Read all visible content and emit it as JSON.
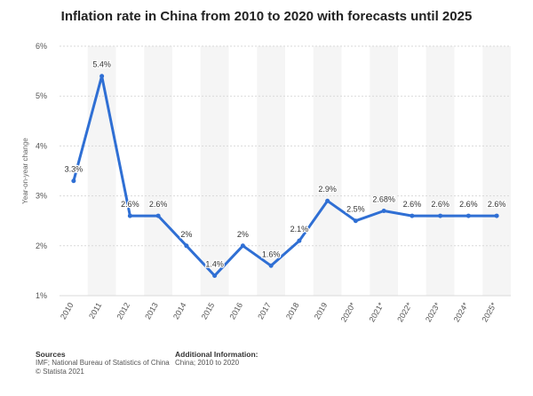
{
  "chart_data": {
    "type": "line",
    "title": "Inflation rate in China from 2010 to 2020 with forecasts until 2025",
    "ylabel": "Year-on-year change",
    "xlabel": "",
    "categories": [
      "2010",
      "2011",
      "2012",
      "2013",
      "2014",
      "2015",
      "2016",
      "2017",
      "2018",
      "2019",
      "2020*",
      "2021*",
      "2022*",
      "2023*",
      "2024*",
      "2025*"
    ],
    "series": [
      {
        "name": "",
        "values": [
          3.3,
          5.4,
          2.6,
          2.6,
          2.0,
          1.4,
          2.0,
          1.6,
          2.1,
          2.9,
          2.5,
          2.7,
          2.6,
          2.6,
          2.6,
          2.6
        ],
        "labels": [
          "3.3%",
          "5.4%",
          "2.6%",
          "2.6%",
          "2%",
          "1.4%",
          "2%",
          "1.6%",
          "2.1%",
          "2.9%",
          "2.5%",
          "2.68%",
          "2.6%",
          "2.6%",
          "2.6%",
          "2.6%"
        ]
      }
    ],
    "ylim": [
      1,
      6
    ],
    "yticks": [
      1,
      2,
      3,
      4,
      5,
      6
    ],
    "ytick_labels": [
      "1%",
      "2%",
      "3%",
      "4%",
      "5%",
      "6%"
    ],
    "grid": true,
    "line_color": "#2f6fd4",
    "band_color": "#f5f5f5"
  },
  "footer": {
    "sources_heading": "Sources",
    "sources_lines": [
      "IMF; National Bureau of Statistics of China",
      "© Statista 2021"
    ],
    "info_heading": "Additional Information:",
    "info_lines": [
      "China; 2010 to 2020"
    ]
  }
}
